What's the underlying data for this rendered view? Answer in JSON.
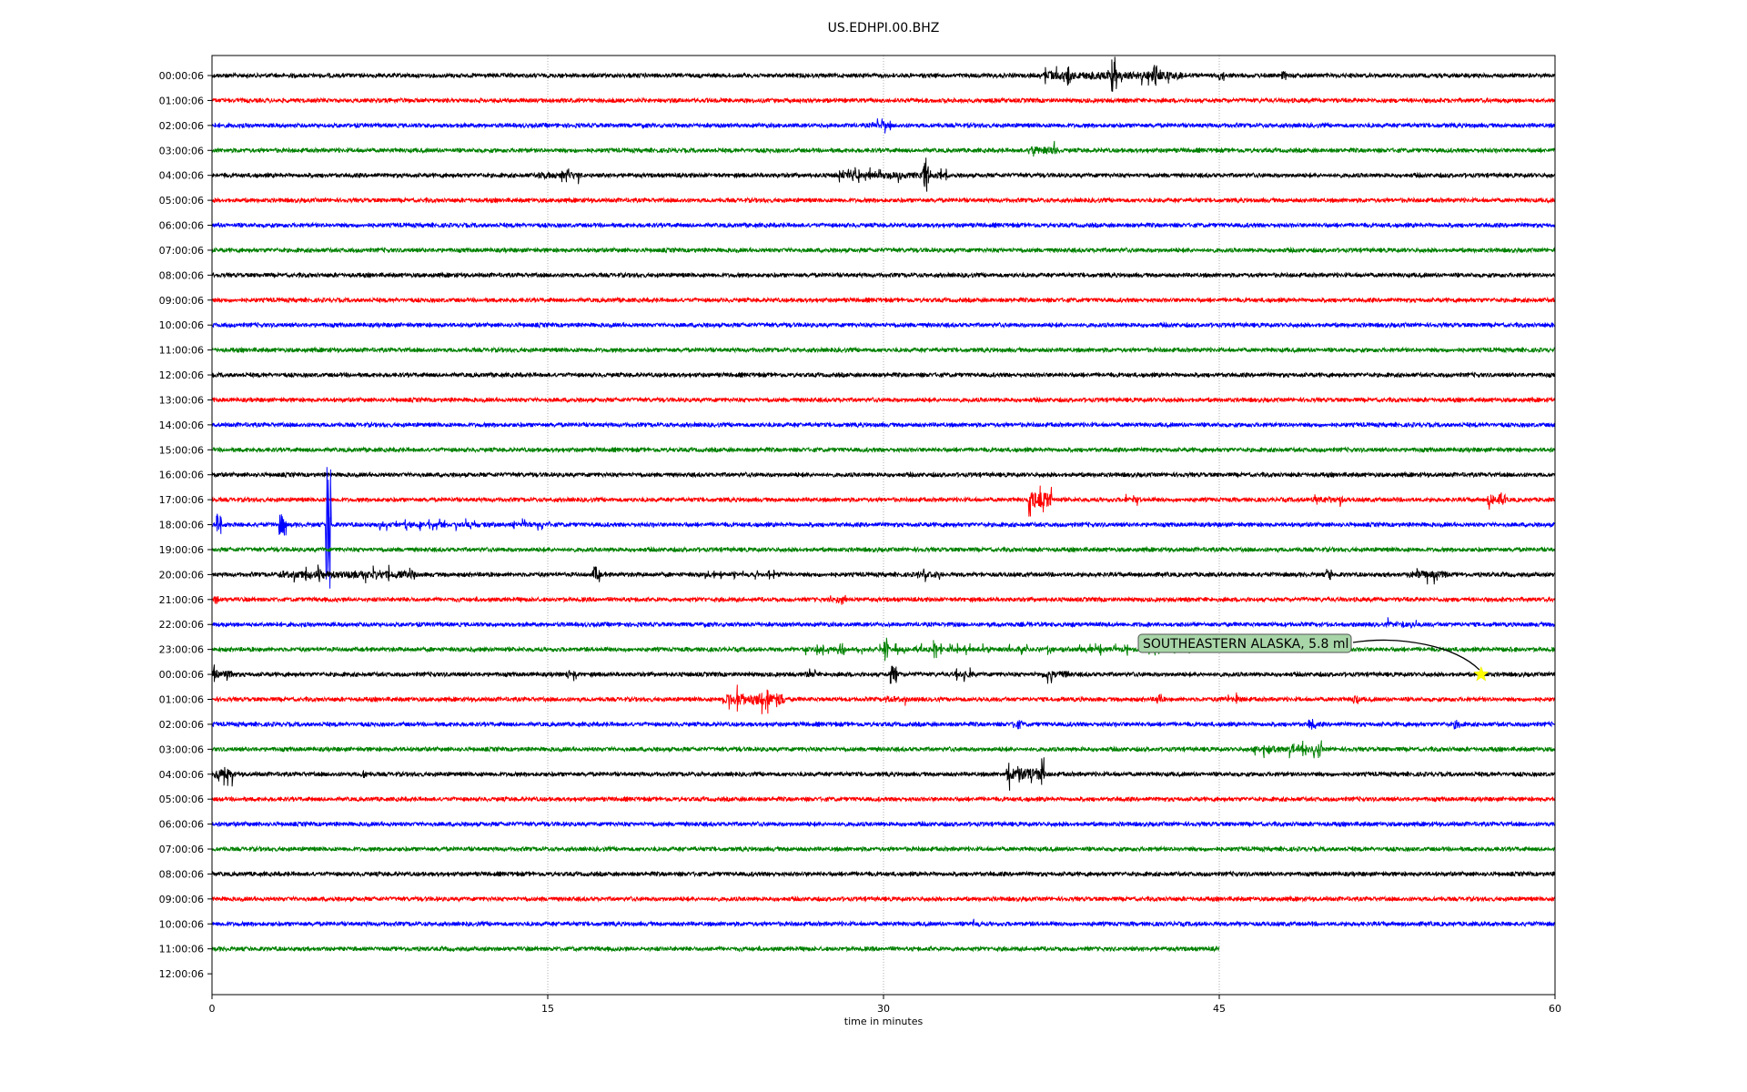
{
  "chart_data": {
    "type": "line",
    "title": "US.EDHPI.00.BHZ",
    "xlabel": "time in minutes",
    "ylabel": "",
    "xlim": [
      0,
      60
    ],
    "x_ticks": [
      "0",
      "15",
      "30",
      "45",
      "60"
    ],
    "x_tick_values": [
      0,
      15,
      30,
      45,
      60
    ],
    "grid": "vertical dotted at x ticks",
    "row_labels": [
      "00:00:06",
      "01:00:06",
      "02:00:06",
      "03:00:06",
      "04:00:06",
      "05:00:06",
      "06:00:06",
      "07:00:06",
      "08:00:06",
      "09:00:06",
      "10:00:06",
      "11:00:06",
      "12:00:06",
      "13:00:06",
      "14:00:06",
      "15:00:06",
      "16:00:06",
      "17:00:06",
      "18:00:06",
      "19:00:06",
      "20:00:06",
      "21:00:06",
      "22:00:06",
      "23:00:06",
      "00:00:06",
      "01:00:06",
      "02:00:06",
      "03:00:06",
      "04:00:06",
      "05:00:06",
      "06:00:06",
      "07:00:06",
      "08:00:06",
      "09:00:06",
      "10:00:06",
      "11:00:06",
      "12:00:06"
    ],
    "trace_colors": [
      "#000000",
      "#ff0000",
      "#0000ff",
      "#008000"
    ],
    "last_trace_end_minute": 45,
    "trace_count": 36,
    "events": [
      [
        0,
        37,
        43.5,
        12
      ],
      [
        0,
        40.2,
        40.4,
        22
      ],
      [
        0,
        42,
        42.2,
        12
      ],
      [
        0,
        45,
        45.2,
        6
      ],
      [
        0,
        47.8,
        48,
        5
      ],
      [
        2,
        29.5,
        30.3,
        9
      ],
      [
        3,
        36.5,
        37.8,
        12
      ],
      [
        4,
        14.5,
        16.5,
        10
      ],
      [
        4,
        28,
        32.8,
        9
      ],
      [
        4,
        31.8,
        32,
        20
      ],
      [
        17,
        36.5,
        37.5,
        25
      ],
      [
        17,
        40.8,
        41.5,
        9
      ],
      [
        17,
        49,
        50.5,
        10
      ],
      [
        17,
        57,
        57.8,
        16
      ],
      [
        18,
        0.2,
        0.4,
        12
      ],
      [
        18,
        3,
        3.3,
        12
      ],
      [
        18,
        5.1,
        5.3,
        80
      ],
      [
        18,
        7.5,
        15.2,
        7
      ],
      [
        20,
        3,
        9.2,
        11
      ],
      [
        20,
        17,
        17.3,
        9
      ],
      [
        20,
        22,
        26,
        6
      ],
      [
        20,
        31.5,
        32.5,
        9
      ],
      [
        20,
        49.8,
        50,
        7
      ],
      [
        20,
        53.5,
        55.2,
        11
      ],
      [
        21,
        0,
        0.3,
        5
      ],
      [
        21,
        27.5,
        28.8,
        6
      ],
      [
        22,
        38.3,
        38.8,
        7
      ],
      [
        22,
        52.5,
        53.8,
        8
      ],
      [
        23,
        26,
        44,
        7
      ],
      [
        23,
        30,
        30.2,
        13
      ],
      [
        23,
        32.2,
        32.4,
        11
      ],
      [
        23,
        57.5,
        58.3,
        8
      ],
      [
        24,
        0,
        1,
        12
      ],
      [
        24,
        15.5,
        16.3,
        8
      ],
      [
        24,
        26.5,
        27,
        9
      ],
      [
        24,
        30.3,
        30.6,
        10
      ],
      [
        24,
        33.2,
        34,
        9
      ],
      [
        24,
        37,
        38.3,
        11
      ],
      [
        25,
        22.8,
        25.6,
        18
      ],
      [
        25,
        30,
        31,
        9
      ],
      [
        25,
        42.2,
        42.4,
        7
      ],
      [
        25,
        45,
        46.2,
        8
      ],
      [
        25,
        51,
        51.2,
        6
      ],
      [
        26,
        35.8,
        36.2,
        5
      ],
      [
        26,
        49,
        49.3,
        6
      ],
      [
        26,
        55.5,
        55.8,
        5
      ],
      [
        27,
        46.5,
        49.6,
        10
      ],
      [
        28,
        0,
        0.9,
        14
      ],
      [
        28,
        6.7,
        6.9,
        5
      ],
      [
        28,
        35.5,
        37.2,
        19
      ],
      [
        34,
        33.8,
        34.4,
        8
      ]
    ],
    "annotation": {
      "text": "SOUTHEASTERN ALASKA, 5.8 ml",
      "marker": "star",
      "marker_color": "#ffff00",
      "row": 24,
      "minute": 56.7,
      "box_color": "#a8d5a8"
    }
  }
}
